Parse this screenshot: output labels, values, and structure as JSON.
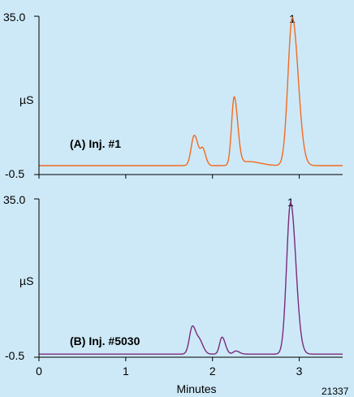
{
  "chart_data": [
    {
      "type": "line",
      "panel_label": "(A) Inj. #1",
      "ylabel": "µS",
      "y_tick_labels": [
        "35.0",
        "-0.5"
      ],
      "ylim": [
        -0.5,
        35.0
      ],
      "xlim": [
        0,
        3.5
      ],
      "grid": false,
      "color": "#f26a21",
      "peak_annotations": [
        {
          "label": "1",
          "x": 2.92
        }
      ],
      "baseline": 1.5,
      "peaks": [
        {
          "x": 1.79,
          "y": 6.8,
          "width": 0.035
        },
        {
          "x": 1.89,
          "y": 3.3,
          "width": 0.025
        },
        {
          "x": 2.25,
          "y": 15.2,
          "width": 0.03
        },
        {
          "x": 2.42,
          "y": 0.9,
          "width": 0.1
        },
        {
          "x": 2.92,
          "y": 33.2,
          "width": 0.05
        }
      ]
    },
    {
      "type": "line",
      "panel_label": "(B) Inj. #5030",
      "ylabel": "µS",
      "y_tick_labels": [
        "35.0",
        "-0.5"
      ],
      "ylim": [
        -0.5,
        35.0
      ],
      "xlim": [
        0,
        3.5
      ],
      "xlabel": "Minutes",
      "x_ticks": [
        0,
        1,
        2,
        3
      ],
      "x_tick_labels": [
        "0",
        "1",
        "2",
        "3"
      ],
      "grid": false,
      "color": "#7b2a7c",
      "peak_annotations": [
        {
          "label": "1",
          "x": 2.9
        }
      ],
      "baseline": 0.2,
      "peaks": [
        {
          "x": 1.77,
          "y": 6.3,
          "width": 0.035
        },
        {
          "x": 1.86,
          "y": 2.2,
          "width": 0.03
        },
        {
          "x": 2.11,
          "y": 3.8,
          "width": 0.028
        },
        {
          "x": 2.27,
          "y": 0.7,
          "width": 0.03
        },
        {
          "x": 2.9,
          "y": 34.0,
          "width": 0.045
        }
      ]
    }
  ],
  "figure_id": "21337"
}
